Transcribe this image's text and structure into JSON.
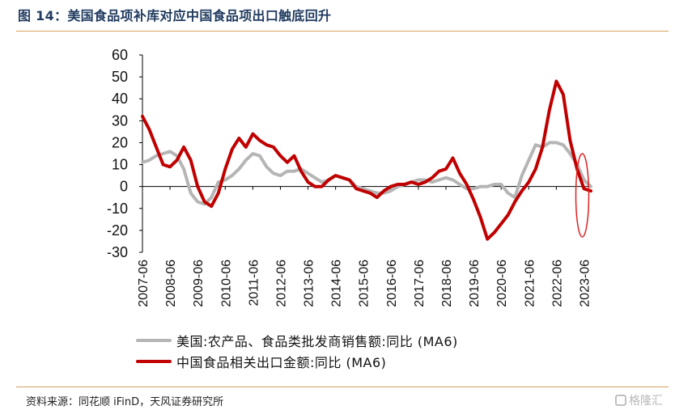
{
  "figure": {
    "title": "图 14：美国食品项补库对应中国食品项出口触底回升",
    "source": "资料来源：同花顺 iFinD，天风证券研究所",
    "watermark": "格隆汇"
  },
  "legend": [
    {
      "label": "美国:农产品、食品类批发商销售额:同比 (MA6)",
      "color": "#b5b5b5"
    },
    {
      "label": "中国食品相关出口金额:同比 (MA6)",
      "color": "#c00000"
    }
  ],
  "chart_data": {
    "type": "line",
    "title": "",
    "xlabel": "",
    "ylabel": "",
    "ylim": [
      -30,
      60
    ],
    "yticks": [
      -30,
      -20,
      -10,
      0,
      10,
      20,
      30,
      40,
      50,
      60
    ],
    "xlim": [
      "2007-06",
      "2023-09"
    ],
    "xticks": [
      "2007-06",
      "2008-06",
      "2009-06",
      "2010-06",
      "2011-06",
      "2012-06",
      "2013-06",
      "2014-06",
      "2015-06",
      "2016-06",
      "2017-06",
      "2018-06",
      "2019-06",
      "2020-06",
      "2021-06",
      "2022-06",
      "2023-06"
    ],
    "grid": false,
    "legend_position": "bottom",
    "annotation": "red ellipse highlighting 2023-06 bottoming",
    "series": [
      {
        "name": "美国:农产品、食品类批发商销售额:同比 (MA6)",
        "color": "#b5b5b5",
        "points": [
          [
            "2007-06",
            11
          ],
          [
            "2007-09",
            12
          ],
          [
            "2007-12",
            14
          ],
          [
            "2008-03",
            15
          ],
          [
            "2008-06",
            16
          ],
          [
            "2008-09",
            14
          ],
          [
            "2008-12",
            8
          ],
          [
            "2009-03",
            -3
          ],
          [
            "2009-06",
            -7
          ],
          [
            "2009-09",
            -8
          ],
          [
            "2009-12",
            -5
          ],
          [
            "2010-03",
            2
          ],
          [
            "2010-06",
            3
          ],
          [
            "2010-09",
            5
          ],
          [
            "2010-12",
            8
          ],
          [
            "2011-03",
            12
          ],
          [
            "2011-06",
            15
          ],
          [
            "2011-09",
            14
          ],
          [
            "2011-12",
            9
          ],
          [
            "2012-03",
            6
          ],
          [
            "2012-06",
            5
          ],
          [
            "2012-09",
            7
          ],
          [
            "2012-12",
            7
          ],
          [
            "2013-03",
            8
          ],
          [
            "2013-06",
            6
          ],
          [
            "2013-09",
            4
          ],
          [
            "2013-12",
            2
          ],
          [
            "2014-03",
            3
          ],
          [
            "2014-06",
            5
          ],
          [
            "2014-09",
            4
          ],
          [
            "2014-12",
            3
          ],
          [
            "2015-03",
            0
          ],
          [
            "2015-06",
            -1
          ],
          [
            "2015-09",
            -2
          ],
          [
            "2015-12",
            -3
          ],
          [
            "2016-03",
            -3
          ],
          [
            "2016-06",
            -2
          ],
          [
            "2016-09",
            0
          ],
          [
            "2016-12",
            1
          ],
          [
            "2017-03",
            2
          ],
          [
            "2017-06",
            3
          ],
          [
            "2017-09",
            3
          ],
          [
            "2017-12",
            2
          ],
          [
            "2018-03",
            3
          ],
          [
            "2018-06",
            4
          ],
          [
            "2018-09",
            3
          ],
          [
            "2018-12",
            1
          ],
          [
            "2019-03",
            -1
          ],
          [
            "2019-06",
            -1
          ],
          [
            "2019-09",
            0
          ],
          [
            "2019-12",
            0
          ],
          [
            "2020-03",
            1
          ],
          [
            "2020-06",
            1
          ],
          [
            "2020-09",
            -3
          ],
          [
            "2020-12",
            -5
          ],
          [
            "2021-03",
            5
          ],
          [
            "2021-06",
            12
          ],
          [
            "2021-09",
            19
          ],
          [
            "2021-12",
            18
          ],
          [
            "2022-03",
            20
          ],
          [
            "2022-06",
            20
          ],
          [
            "2022-09",
            19
          ],
          [
            "2022-12",
            15
          ],
          [
            "2023-03",
            10
          ],
          [
            "2023-06",
            3
          ],
          [
            "2023-09",
            0
          ]
        ]
      },
      {
        "name": "中国食品相关出口金额:同比 (MA6)",
        "color": "#c00000",
        "points": [
          [
            "2007-06",
            32
          ],
          [
            "2007-09",
            26
          ],
          [
            "2007-12",
            18
          ],
          [
            "2008-03",
            10
          ],
          [
            "2008-06",
            9
          ],
          [
            "2008-09",
            12
          ],
          [
            "2008-12",
            18
          ],
          [
            "2009-03",
            12
          ],
          [
            "2009-06",
            0
          ],
          [
            "2009-09",
            -7
          ],
          [
            "2009-12",
            -9
          ],
          [
            "2010-03",
            -3
          ],
          [
            "2010-06",
            8
          ],
          [
            "2010-09",
            17
          ],
          [
            "2010-12",
            22
          ],
          [
            "2011-03",
            18
          ],
          [
            "2011-06",
            24
          ],
          [
            "2011-09",
            21
          ],
          [
            "2011-12",
            19
          ],
          [
            "2012-03",
            18
          ],
          [
            "2012-06",
            14
          ],
          [
            "2012-09",
            11
          ],
          [
            "2012-12",
            14
          ],
          [
            "2013-03",
            7
          ],
          [
            "2013-06",
            2
          ],
          [
            "2013-09",
            0
          ],
          [
            "2013-12",
            0
          ],
          [
            "2014-03",
            3
          ],
          [
            "2014-06",
            5
          ],
          [
            "2014-09",
            4
          ],
          [
            "2014-12",
            3
          ],
          [
            "2015-03",
            -1
          ],
          [
            "2015-06",
            -2
          ],
          [
            "2015-09",
            -3
          ],
          [
            "2015-12",
            -5
          ],
          [
            "2016-03",
            -2
          ],
          [
            "2016-06",
            0
          ],
          [
            "2016-09",
            1
          ],
          [
            "2016-12",
            1
          ],
          [
            "2017-03",
            2
          ],
          [
            "2017-06",
            1
          ],
          [
            "2017-09",
            2
          ],
          [
            "2017-12",
            4
          ],
          [
            "2018-03",
            7
          ],
          [
            "2018-06",
            8
          ],
          [
            "2018-09",
            13
          ],
          [
            "2018-12",
            6
          ],
          [
            "2019-03",
            1
          ],
          [
            "2019-06",
            -6
          ],
          [
            "2019-09",
            -14
          ],
          [
            "2019-12",
            -24
          ],
          [
            "2020-03",
            -21
          ],
          [
            "2020-06",
            -17
          ],
          [
            "2020-09",
            -13
          ],
          [
            "2020-12",
            -7
          ],
          [
            "2021-03",
            -2
          ],
          [
            "2021-06",
            2
          ],
          [
            "2021-09",
            8
          ],
          [
            "2021-12",
            18
          ],
          [
            "2022-03",
            35
          ],
          [
            "2022-06",
            48
          ],
          [
            "2022-09",
            42
          ],
          [
            "2022-12",
            21
          ],
          [
            "2023-03",
            8
          ],
          [
            "2023-06",
            -1
          ],
          [
            "2023-09",
            -2
          ]
        ]
      }
    ]
  }
}
